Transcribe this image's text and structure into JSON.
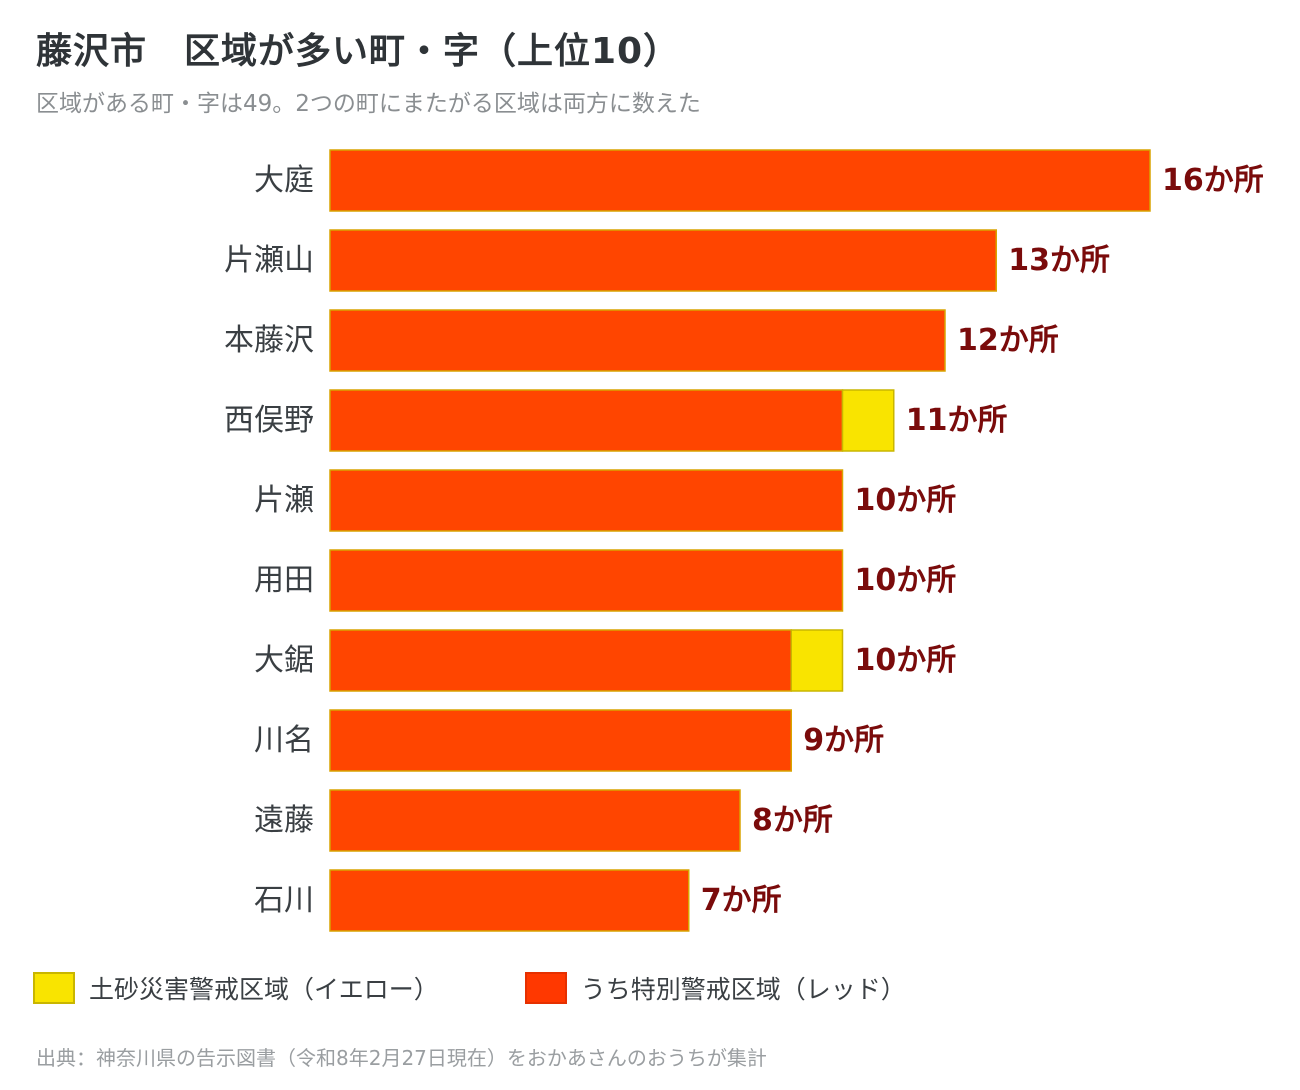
{
  "title": "藤沢市　区域が多い町・字（上位10）",
  "subtitle": "区域がある町・字は49。2つの町にまたがる区域は両方に数えた",
  "legend": {
    "yellow": "土砂災害警戒区域（イエロー）",
    "red": "うち特別警戒区域（レッド）"
  },
  "source": "出典：神奈川県の告示図書（令和8年2月27日現在）をおかあさんのおうちが集計",
  "colors": {
    "yellow": "#f9e400",
    "red": "#ff4500",
    "value_label": "#7a0b0b",
    "category_label": "#3a3f43"
  },
  "chart_data": {
    "type": "bar",
    "orientation": "horizontal",
    "stacked": true,
    "categories": [
      "大庭",
      "片瀬山",
      "本藤沢",
      "西俣野",
      "片瀬",
      "用田",
      "大鋸",
      "川名",
      "遠藤",
      "石川"
    ],
    "series": [
      {
        "name": "うち特別警戒区域（レッド）",
        "color": "#ff4500",
        "values": [
          16,
          13,
          12,
          10,
          10,
          10,
          9,
          9,
          8,
          7
        ]
      },
      {
        "name": "土砂災害警戒区域（イエロー）",
        "color": "#f9e400",
        "values": [
          0,
          0,
          0,
          1,
          0,
          0,
          1,
          0,
          0,
          0
        ]
      }
    ],
    "totals": [
      16,
      13,
      12,
      11,
      10,
      10,
      10,
      9,
      8,
      7
    ],
    "data_labels": [
      "16か所",
      "13か所",
      "12か所",
      "11か所",
      "10か所",
      "10か所",
      "10か所",
      "9か所",
      "8か所",
      "7か所"
    ],
    "xlim": [
      0,
      16
    ],
    "grid": false,
    "legend_position": "bottom"
  }
}
